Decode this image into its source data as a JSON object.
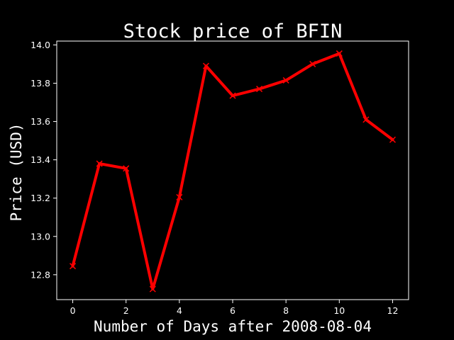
{
  "chart_data": {
    "type": "line",
    "title": "Stock price of BFIN",
    "xlabel": "Number of Days after 2008-08-04",
    "ylabel": "Price (USD)",
    "x": [
      0,
      1,
      2,
      3,
      4,
      5,
      6,
      7,
      8,
      9,
      10,
      11,
      12
    ],
    "xlim": [
      -0.6,
      12.6
    ],
    "ylim": [
      12.67,
      14.02
    ],
    "xticks": [
      0,
      2,
      4,
      6,
      8,
      10,
      12
    ],
    "yticks": [
      12.8,
      13.0,
      13.2,
      13.4,
      13.6,
      13.8,
      14.0
    ],
    "xtick_labels": [
      "0",
      "2",
      "4",
      "6",
      "8",
      "10",
      "12"
    ],
    "ytick_labels": [
      "12.8",
      "13.0",
      "13.2",
      "13.4",
      "13.6",
      "13.8",
      "14.0"
    ],
    "grid": false,
    "series": [
      {
        "values": [
          12.845,
          13.38,
          13.355,
          12.725,
          13.205,
          13.89,
          13.735,
          13.77,
          13.815,
          13.9,
          13.955,
          13.61,
          13.505
        ],
        "color": "#ff0000",
        "marker": "x"
      }
    ],
    "background": "#000000",
    "foreground": "#ffffff"
  }
}
